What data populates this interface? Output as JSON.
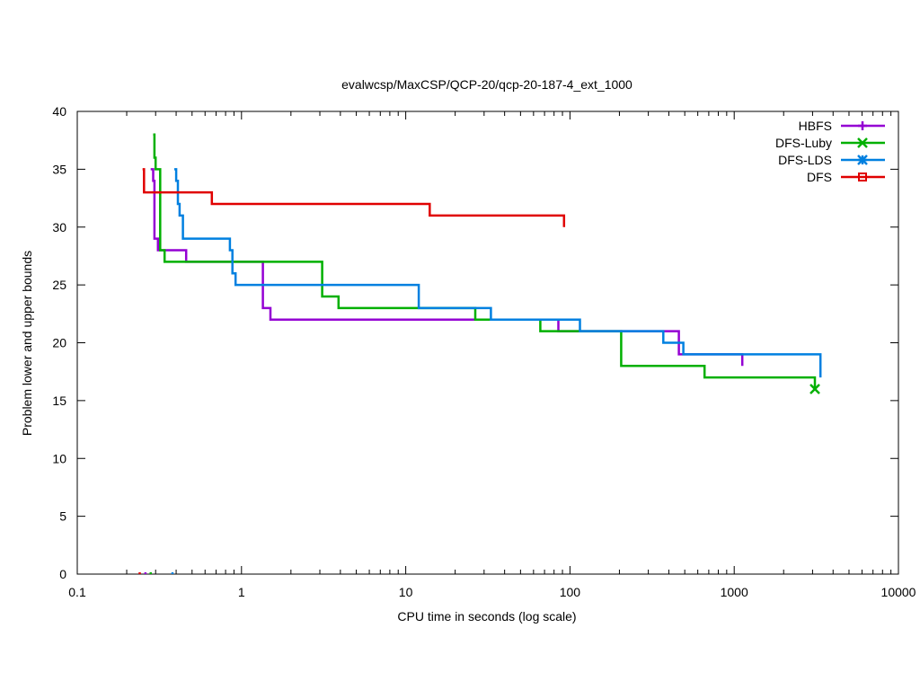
{
  "chart_data": {
    "type": "line",
    "title": "evalwcsp/MaxCSP/QCP-20/qcp-20-187-4_ext_1000",
    "xlabel": "CPU time in seconds (log scale)",
    "ylabel": "Problem lower and upper bounds",
    "x_scale": "log",
    "xlim": [
      0.1,
      10000
    ],
    "ylim": [
      0,
      40
    ],
    "x_ticks": [
      0.1,
      1,
      10,
      100,
      1000,
      10000
    ],
    "x_tick_labels": [
      "0.1",
      "1",
      "10",
      "100",
      "1000",
      "10000"
    ],
    "y_ticks": [
      0,
      5,
      10,
      15,
      20,
      25,
      30,
      35,
      40
    ],
    "y_tick_labels": [
      "0",
      "5",
      "10",
      "15",
      "20",
      "25",
      "30",
      "35",
      "40"
    ],
    "grid": false,
    "legend_position": "top-right",
    "series": [
      {
        "name": "HBFS",
        "color": "#9400d3",
        "marker": "plus",
        "step_points": [
          [
            0.28,
            35
          ],
          [
            0.29,
            34
          ],
          [
            0.295,
            29
          ],
          [
            0.31,
            28
          ],
          [
            0.46,
            27
          ],
          [
            1.35,
            23
          ],
          [
            1.5,
            22
          ],
          [
            85,
            21
          ],
          [
            460,
            19
          ],
          [
            1120,
            18
          ]
        ],
        "lower_bound_x": 0.26
      },
      {
        "name": "DFS-Luby",
        "color": "#00b000",
        "marker": "x",
        "step_points": [
          [
            0.29,
            38
          ],
          [
            0.295,
            36
          ],
          [
            0.3,
            35
          ],
          [
            0.32,
            28
          ],
          [
            0.34,
            27
          ],
          [
            3.1,
            24
          ],
          [
            3.9,
            23
          ],
          [
            26.5,
            22
          ],
          [
            66,
            21
          ],
          [
            205,
            18
          ],
          [
            660,
            17
          ],
          [
            3100,
            16
          ]
        ],
        "lower_bound_x": 0.28
      },
      {
        "name": "DFS-LDS",
        "color": "#0080e0",
        "marker": "star",
        "step_points": [
          [
            0.39,
            35
          ],
          [
            0.4,
            34
          ],
          [
            0.41,
            32
          ],
          [
            0.42,
            31
          ],
          [
            0.44,
            29
          ],
          [
            0.85,
            28
          ],
          [
            0.88,
            26
          ],
          [
            0.92,
            25
          ],
          [
            12,
            23
          ],
          [
            33,
            22
          ],
          [
            115,
            21
          ],
          [
            370,
            20
          ],
          [
            490,
            19
          ],
          [
            3350,
            17
          ]
        ],
        "lower_bound_x": 0.38
      },
      {
        "name": "DFS",
        "color": "#e00000",
        "marker": "square",
        "step_points": [
          [
            0.25,
            35
          ],
          [
            0.255,
            33
          ],
          [
            0.66,
            32
          ],
          [
            14,
            31
          ],
          [
            92,
            30
          ]
        ],
        "lower_bound_x": 0.24
      }
    ]
  }
}
